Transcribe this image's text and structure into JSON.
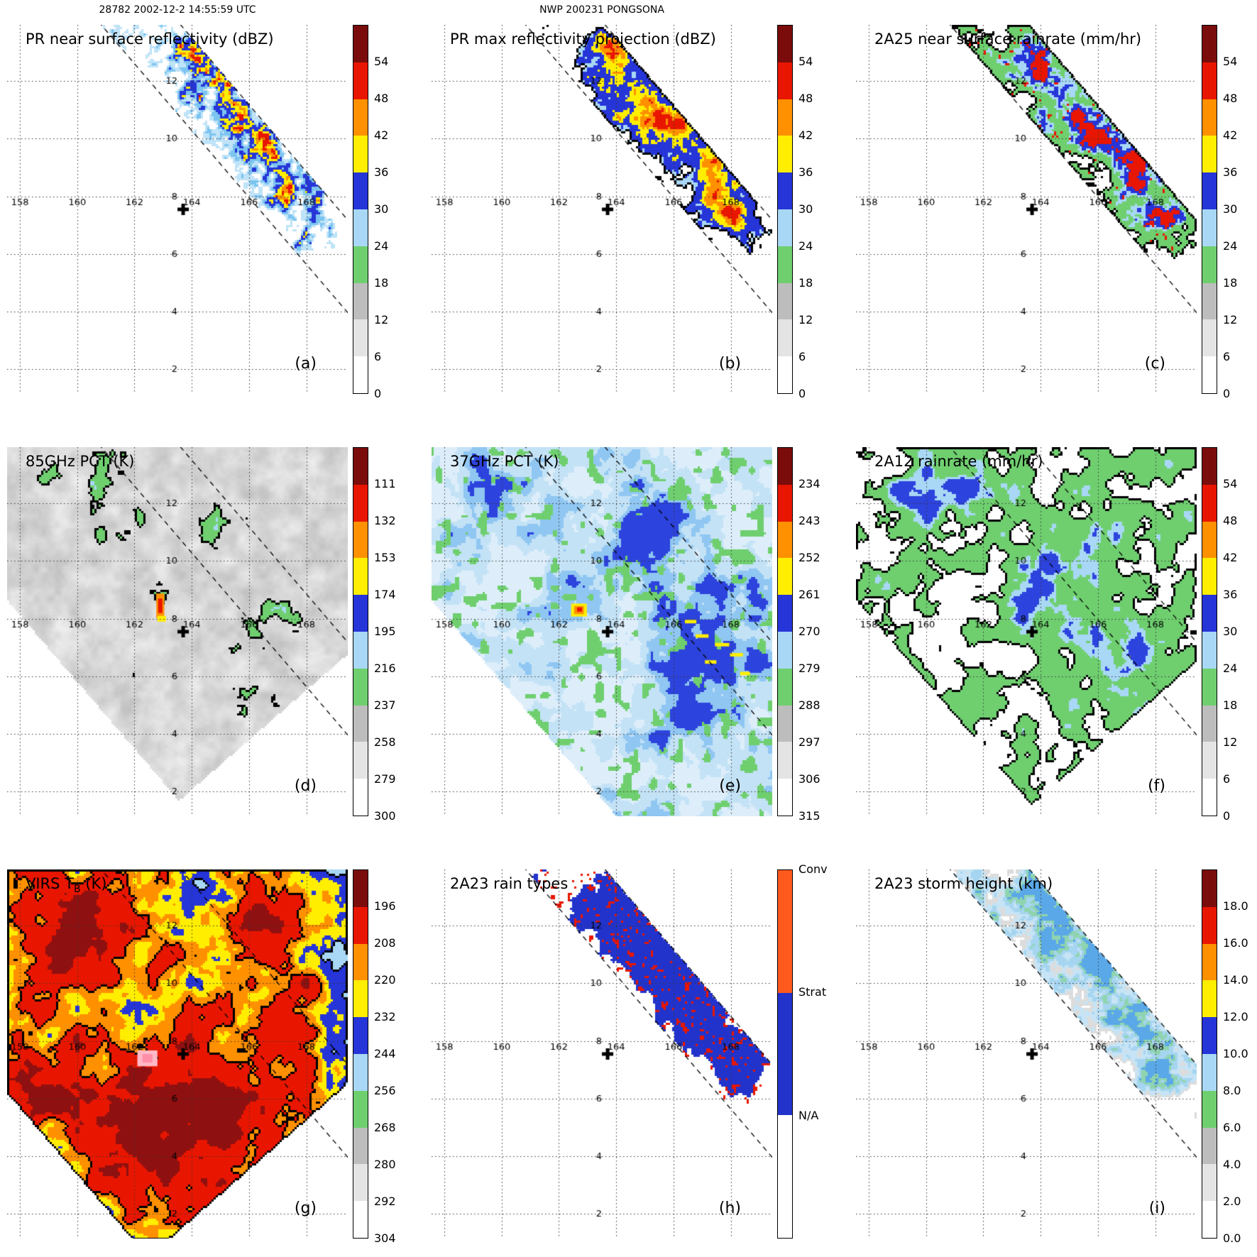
{
  "header": {
    "left": "28782 2002-12-2 14:55:59 UTC",
    "center": "NWP 200231 PONGSONA"
  },
  "figure": {
    "background": "#ffffff",
    "lon_range": [
      157.55,
      169.45
    ],
    "lat_range": [
      1.15,
      13.95
    ],
    "lon_ticks": [
      158,
      160,
      162,
      164,
      166,
      168
    ],
    "lat_ticks": [
      2,
      4,
      6,
      8,
      10,
      12
    ],
    "center_marker": {
      "lon": 163.7,
      "lat": 7.55
    },
    "track": {
      "point": [
        165.2,
        10.5
      ],
      "dir": [
        0.653,
        -0.757
      ]
    },
    "swaths": {
      "pr": 1.05,
      "tmi": 7.0,
      "virs": 8.6
    },
    "colorbar_colors_bottom_to_top": [
      "#ffffff",
      "#e4e4e4",
      "#bdbdbd",
      "#6fcf6f",
      "#a8d8f5",
      "#2635d8",
      "#ffee00",
      "#ff9000",
      "#e81600",
      "#7a0c0c"
    ],
    "raintype_segments": [
      {
        "label": "Conv",
        "color": "#ff5a1e"
      },
      {
        "label": "Strat",
        "color": "#2233cc"
      },
      {
        "label": "N/A",
        "color": "#ffffff"
      }
    ]
  },
  "chart_data": [
    {
      "id": "a",
      "letter": "(a)",
      "type": "map",
      "title": "PR near surface reflectivity (dBZ)",
      "units": "dBZ",
      "swath": "pr",
      "colorbar": {
        "type": "scale",
        "ticks": [
          "54",
          "48",
          "42",
          "36",
          "30",
          "24",
          "18",
          "12",
          "6",
          "0"
        ]
      },
      "features": [
        {
          "lon": 163.6,
          "lat": 13.0,
          "r": 0.9,
          "amp": 0.24
        },
        {
          "lon": 164.9,
          "lat": 11.7,
          "r": 1.3,
          "amp": 0.27
        },
        {
          "lon": 166.3,
          "lat": 10.2,
          "r": 1.2,
          "amp": 0.31
        },
        {
          "lon": 167.4,
          "lat": 8.6,
          "r": 1.0,
          "amp": 0.27
        },
        {
          "lon": 168.3,
          "lat": 7.1,
          "r": 0.9,
          "amp": 0.29
        }
      ],
      "render": {
        "seed": 11,
        "base": 0.12,
        "noise": 0.62,
        "fscale": 1.9,
        "fine": 0.18,
        "t_fade": 4.8,
        "rules": [
          {
            "thr": 0.55,
            "color": "#bfe3f8"
          },
          {
            "thr": 0.62,
            "color": "#7cc4f0"
          },
          {
            "thr": 0.68,
            "color": "#2635d8"
          },
          {
            "thr": 0.76,
            "color": "#ffee00"
          },
          {
            "thr": 0.82,
            "color": "#ff9000"
          },
          {
            "thr": 0.86,
            "color": "#e81600"
          }
        ]
      }
    },
    {
      "id": "b",
      "letter": "(b)",
      "type": "map",
      "title": "PR max reflectivity projection (dBZ)",
      "units": "dBZ",
      "swath": "pr",
      "colorbar": {
        "type": "scale",
        "ticks": [
          "54",
          "48",
          "42",
          "36",
          "30",
          "24",
          "18",
          "12",
          "6",
          "0"
        ]
      },
      "features": [
        {
          "lon": 163.6,
          "lat": 13.0,
          "r": 0.9,
          "amp": 0.28
        },
        {
          "lon": 164.9,
          "lat": 11.7,
          "r": 1.3,
          "amp": 0.33
        },
        {
          "lon": 166.3,
          "lat": 10.2,
          "r": 1.2,
          "amp": 0.36
        },
        {
          "lon": 167.4,
          "lat": 8.6,
          "r": 1.0,
          "amp": 0.32
        },
        {
          "lon": 168.3,
          "lat": 7.1,
          "r": 0.9,
          "amp": 0.34
        }
      ],
      "render": {
        "seed": 22,
        "base": 0.16,
        "noise": 0.55,
        "fscale": 1.5,
        "fine": 0.1,
        "t_fade": 4.8,
        "contour": "#000000",
        "rules": [
          {
            "thr": 0.5,
            "color": "#a8d8f5"
          },
          {
            "thr": 0.56,
            "color": "#2635d8"
          },
          {
            "thr": 0.68,
            "color": "#ffee00"
          },
          {
            "thr": 0.76,
            "color": "#ff9000"
          },
          {
            "thr": 0.83,
            "color": "#e81600"
          }
        ]
      }
    },
    {
      "id": "c",
      "letter": "(c)",
      "type": "map",
      "title": "2A25 near surface rainrate (mm/hr)",
      "units": "mm/hr",
      "swath": "pr",
      "colorbar": {
        "type": "scale",
        "ticks": [
          "54",
          "48",
          "42",
          "36",
          "30",
          "24",
          "18",
          "12",
          "6",
          "0"
        ]
      },
      "features": [
        {
          "lon": 163.6,
          "lat": 13.0,
          "r": 0.9,
          "amp": 0.27
        },
        {
          "lon": 164.9,
          "lat": 11.7,
          "r": 1.3,
          "amp": 0.31
        },
        {
          "lon": 166.3,
          "lat": 10.2,
          "r": 1.2,
          "amp": 0.34
        },
        {
          "lon": 167.4,
          "lat": 8.6,
          "r": 1.0,
          "amp": 0.3
        },
        {
          "lon": 168.3,
          "lat": 7.1,
          "r": 0.9,
          "amp": 0.32
        }
      ],
      "render": {
        "seed": 33,
        "base": 0.17,
        "noise": 0.58,
        "fscale": 1.5,
        "fine": 0.12,
        "t_fade": 4.8,
        "contour": "#000000",
        "speck": {
          "thr": 0.88,
          "fmin": 0.5,
          "color": "#e81600"
        },
        "rules": [
          {
            "thr": 0.5,
            "color": "#6fcf6f"
          },
          {
            "thr": 0.68,
            "color": "#a8d8f5"
          },
          {
            "thr": 0.74,
            "color": "#2635d8"
          },
          {
            "thr": 0.82,
            "color": "#e81600"
          }
        ]
      }
    },
    {
      "id": "d",
      "letter": "(d)",
      "type": "map",
      "title": "85GHz PCT (K)",
      "units": "K",
      "swath": "tmi",
      "colorbar": {
        "type": "scale",
        "ticks": [
          "111",
          "132",
          "153",
          "174",
          "195",
          "216",
          "237",
          "258",
          "279",
          "300"
        ]
      },
      "features": [
        {
          "lon": 158.7,
          "lat": 12.9,
          "r": 0.8,
          "amp": 0.22
        },
        {
          "lon": 161.0,
          "lat": 12.3,
          "r": 1.5,
          "amp": 0.22
        },
        {
          "lon": 164.6,
          "lat": 11.4,
          "r": 1.0,
          "amp": 0.26
        },
        {
          "lon": 166.6,
          "lat": 7.7,
          "r": 1.2,
          "amp": 0.24
        },
        {
          "lon": 165.9,
          "lat": 5.4,
          "r": 0.8,
          "amp": 0.2
        },
        {
          "lon": 162.9,
          "lat": 8.6,
          "r": 0.6,
          "amp": 0.28
        },
        {
          "lon": 167.8,
          "lat": 4.0,
          "r": 0.6,
          "amp": 0.18
        }
      ],
      "render": {
        "seed": 44,
        "bg": "gray",
        "base": 0.18,
        "noise": 0.5,
        "fscale": 1.3,
        "t_max": 5.6,
        "contour": "#000000",
        "rules": [
          {
            "thr": 0.62,
            "color": "#6fcf6f"
          },
          {
            "thr": 0.72,
            "color": "#a8d8f5"
          },
          {
            "thr": 0.79,
            "color": "#2635d8"
          }
        ],
        "marks": [
          {
            "lon": 162.9,
            "lat": 8.45,
            "w": 0.28,
            "h": 0.85,
            "color": "#ff9000"
          },
          {
            "lon": 162.9,
            "lat": 8.45,
            "w": 0.15,
            "h": 0.5,
            "color": "#e81600"
          },
          {
            "lon": 162.95,
            "lat": 8.0,
            "w": 0.3,
            "h": 0.2,
            "color": "#ffee00"
          }
        ]
      }
    },
    {
      "id": "e",
      "letter": "(e)",
      "type": "map",
      "title": "37GHz PCT (K)",
      "units": "K",
      "swath": "tmi",
      "colorbar": {
        "type": "scale",
        "ticks": [
          "234",
          "243",
          "252",
          "261",
          "270",
          "279",
          "288",
          "297",
          "306",
          "315"
        ]
      },
      "features": [
        {
          "lon": 159.3,
          "lat": 12.4,
          "r": 1.2,
          "amp": 0.24
        },
        {
          "lon": 165.0,
          "lat": 11.0,
          "r": 1.6,
          "amp": 0.26
        },
        {
          "lon": 167.3,
          "lat": 7.0,
          "r": 1.8,
          "amp": 0.3
        },
        {
          "lon": 162.3,
          "lat": 9.4,
          "r": 1.0,
          "amp": 0.2
        },
        {
          "lon": 166.0,
          "lat": 4.6,
          "r": 1.0,
          "amp": 0.18
        },
        {
          "lon": 168.3,
          "lat": 9.5,
          "r": 1.0,
          "amp": 0.18
        }
      ],
      "render": {
        "seed": 55,
        "bg": "#ddeefa",
        "base": 0.2,
        "noise": 0.5,
        "fscale": 1.1,
        "green_speck": {
          "thr": 0.75,
          "color": "#6fcf6f"
        },
        "rules": [
          {
            "thr": 0.45,
            "color": "#c3e2f6"
          },
          {
            "thr": 0.56,
            "color": "#8fc6f2"
          },
          {
            "thr": 0.64,
            "color": "#2d43dd"
          }
        ],
        "marks": [
          {
            "lon": 162.7,
            "lat": 8.3,
            "w": 0.55,
            "h": 0.45,
            "color": "#ffee00"
          },
          {
            "lon": 162.7,
            "lat": 8.3,
            "w": 0.34,
            "h": 0.28,
            "color": "#ff9000"
          },
          {
            "lon": 162.72,
            "lat": 8.32,
            "w": 0.18,
            "h": 0.15,
            "color": "#e81600"
          },
          {
            "lon": 167.0,
            "lat": 7.4,
            "w": 0.45,
            "h": 0.12,
            "color": "#ffee00"
          },
          {
            "lon": 167.7,
            "lat": 7.1,
            "w": 0.5,
            "h": 0.12,
            "color": "#ffee00"
          },
          {
            "lon": 168.2,
            "lat": 6.75,
            "w": 0.45,
            "h": 0.12,
            "color": "#ffee00"
          },
          {
            "lon": 167.3,
            "lat": 6.5,
            "w": 0.4,
            "h": 0.12,
            "color": "#ffee00"
          },
          {
            "lon": 168.5,
            "lat": 6.1,
            "w": 0.35,
            "h": 0.12,
            "color": "#ffee00"
          },
          {
            "lon": 166.6,
            "lat": 7.9,
            "w": 0.4,
            "h": 0.12,
            "color": "#ffee00"
          }
        ]
      }
    },
    {
      "id": "f",
      "letter": "(f)",
      "type": "map",
      "title": "2A12 rainrate (mm/hr)",
      "units": "mm/hr",
      "swath": "tmi",
      "colorbar": {
        "type": "scale",
        "ticks": [
          "54",
          "48",
          "42",
          "36",
          "30",
          "24",
          "18",
          "12",
          "6",
          "0"
        ]
      },
      "features": [
        {
          "lon": 161.2,
          "lat": 12.6,
          "r": 1.6,
          "amp": 0.2
        },
        {
          "lon": 159.5,
          "lat": 12.0,
          "r": 1.0,
          "amp": 0.18
        },
        {
          "lon": 165.6,
          "lat": 10.0,
          "r": 1.8,
          "amp": 0.22
        },
        {
          "lon": 167.0,
          "lat": 6.5,
          "r": 1.6,
          "amp": 0.22
        },
        {
          "lon": 163.5,
          "lat": 8.8,
          "r": 1.2,
          "amp": 0.18
        },
        {
          "lon": 168.0,
          "lat": 4.5,
          "r": 0.9,
          "amp": 0.16
        }
      ],
      "render": {
        "seed": 66,
        "base": 0.24,
        "noise": 0.55,
        "fscale": 1.2,
        "t_max": 5.8,
        "contour": "#000000",
        "rules": [
          {
            "thr": 0.5,
            "color": "#6fcf6f"
          },
          {
            "thr": 0.68,
            "color": "#a8d8f5"
          },
          {
            "thr": 0.75,
            "color": "#2d43dd"
          }
        ]
      }
    },
    {
      "id": "g",
      "letter": "(g)",
      "type": "map",
      "title": "VIRS T",
      "title_sub": "B",
      "title_post": " (K)",
      "units": "K",
      "swath": "virs",
      "colorbar": {
        "type": "scale",
        "ticks": [
          "196",
          "208",
          "220",
          "232",
          "244",
          "256",
          "268",
          "280",
          "292",
          "304"
        ]
      },
      "features": [
        {
          "lon": 163.5,
          "lat": 5.5,
          "r": 3.5,
          "amp": 0.36
        },
        {
          "lon": 160.0,
          "lat": 11.8,
          "r": 2.2,
          "amp": 0.3
        },
        {
          "lon": 166.8,
          "lat": 12.3,
          "r": 1.6,
          "amp": 0.26
        },
        {
          "lon": 158.5,
          "lat": 6.5,
          "r": 1.8,
          "amp": 0.24
        },
        {
          "lon": 167.5,
          "lat": 9.0,
          "r": 1.4,
          "amp": 0.2
        }
      ],
      "render": {
        "seed": 77,
        "bg": "#f0f0f0",
        "base": 0.27,
        "noise": 0.46,
        "fscale": 1.0,
        "t_max": 5.8,
        "contour": "#000000",
        "contour_levels": [
          3,
          6
        ],
        "rules": [
          {
            "thr": 0.3,
            "color": "#c9c9c9"
          },
          {
            "thr": 0.37,
            "color": "#a8d8f5"
          },
          {
            "thr": 0.44,
            "color": "#2635d8"
          },
          {
            "thr": 0.52,
            "color": "#ffee00"
          },
          {
            "thr": 0.58,
            "color": "#ff9000"
          },
          {
            "thr": 0.64,
            "color": "#e81600"
          },
          {
            "thr": 0.78,
            "color": "#8f1010"
          }
        ],
        "marks": [
          {
            "lon": 162.45,
            "lat": 7.4,
            "w": 0.7,
            "h": 0.55,
            "color": "#ffb9c6"
          },
          {
            "lon": 162.45,
            "lat": 7.4,
            "w": 0.35,
            "h": 0.3,
            "color": "#ff8fa8"
          }
        ]
      }
    },
    {
      "id": "h",
      "letter": "(h)",
      "type": "map",
      "title": "2A23 rain types",
      "units": "",
      "swath": "pr",
      "colorbar": {
        "type": "raintype",
        "ticks": [
          "Conv",
          "Strat",
          "N/A"
        ]
      },
      "features": [
        {
          "lon": 163.6,
          "lat": 13.0,
          "r": 0.9,
          "amp": 0.28
        },
        {
          "lon": 164.9,
          "lat": 11.7,
          "r": 1.3,
          "amp": 0.33
        },
        {
          "lon": 166.3,
          "lat": 10.2,
          "r": 1.2,
          "amp": 0.36
        },
        {
          "lon": 167.4,
          "lat": 8.6,
          "r": 1.0,
          "amp": 0.32
        },
        {
          "lon": 168.3,
          "lat": 7.1,
          "r": 0.9,
          "amp": 0.34
        }
      ],
      "render": {
        "seed": 88,
        "base": 0.15,
        "noise": 0.55,
        "fscale": 1.4,
        "t_fade": 4.8,
        "speck": {
          "thr": 0.78,
          "fmin": 0.42,
          "color": "#e81600"
        },
        "rules": [
          {
            "thr": 0.52,
            "color": "#2233cc"
          }
        ]
      }
    },
    {
      "id": "i",
      "letter": "(i)",
      "type": "map",
      "title": "2A23 storm height (km)",
      "units": "km",
      "swath": "pr",
      "colorbar": {
        "type": "scale",
        "ticks": [
          "18.0",
          "16.0",
          "14.0",
          "12.0",
          "10.0",
          "8.0",
          "6.0",
          "4.0",
          "2.0",
          "0.0"
        ]
      },
      "features": [
        {
          "lon": 163.6,
          "lat": 13.0,
          "r": 0.9,
          "amp": 0.24
        },
        {
          "lon": 164.9,
          "lat": 11.7,
          "r": 1.3,
          "amp": 0.27
        },
        {
          "lon": 166.3,
          "lat": 10.2,
          "r": 1.2,
          "amp": 0.31
        },
        {
          "lon": 167.4,
          "lat": 8.6,
          "r": 1.0,
          "amp": 0.27
        },
        {
          "lon": 168.3,
          "lat": 7.1,
          "r": 0.9,
          "amp": 0.29
        }
      ],
      "render": {
        "seed": 99,
        "base": 0.2,
        "noise": 0.6,
        "fscale": 1.7,
        "fine": 0.15,
        "t_fade": 4.8,
        "rules": [
          {
            "thr": 0.46,
            "color": "#dcdcdc"
          },
          {
            "thr": 0.54,
            "color": "#c6e4f5"
          },
          {
            "thr": 0.62,
            "color": "#a5d5f0"
          },
          {
            "thr": 0.7,
            "color": "#8fd4b0"
          },
          {
            "thr": 0.76,
            "color": "#5aa8e8"
          }
        ]
      }
    }
  ]
}
